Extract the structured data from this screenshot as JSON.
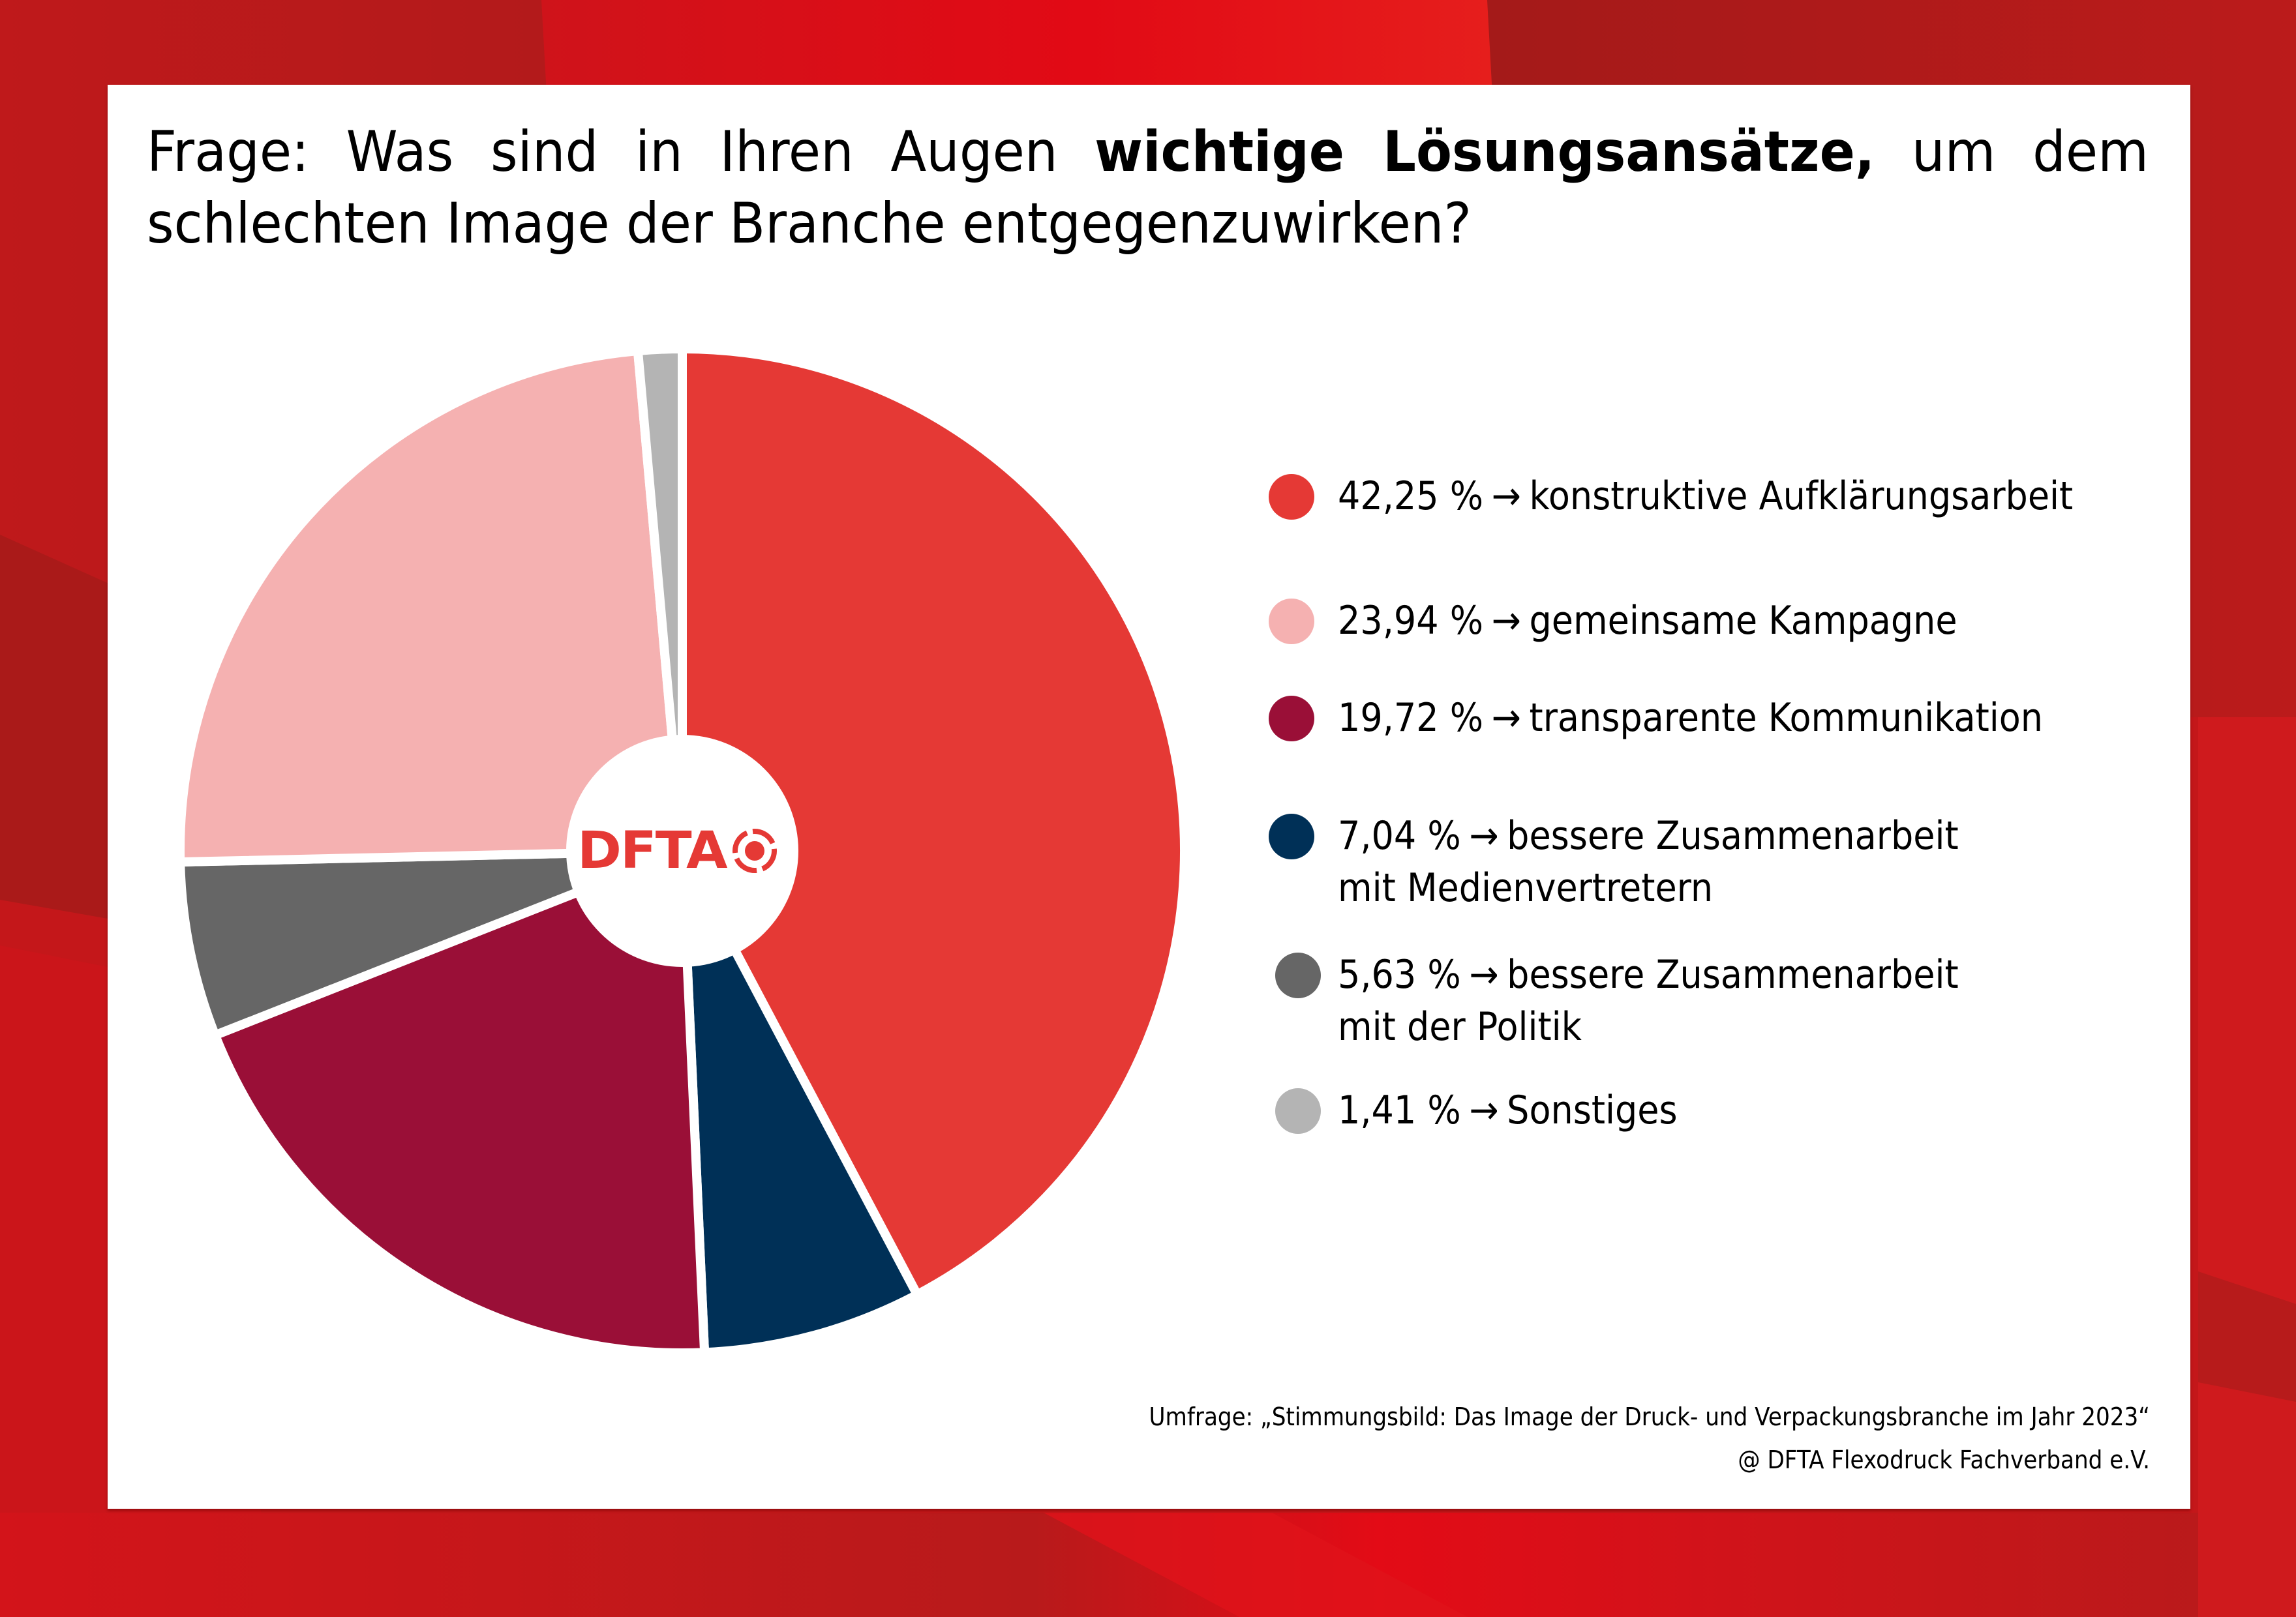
{
  "title": {
    "prefix": "Frage: Was sind in Ihren Augen ",
    "bold": "wichtige Lösungsansätze,",
    "suffix_line1": " um dem",
    "line2": "schlechten Image der Branche entgegenzuwirken?"
  },
  "logo": {
    "text": "DFTA",
    "icon": "target-icon",
    "color": "#e53935"
  },
  "legend": [
    {
      "percent": "42,25 %",
      "arrow": "→",
      "label": "konstruktive Aufklärungsarbeit",
      "label_line2": "",
      "color": "#e53935"
    },
    {
      "percent": "23,94 %",
      "arrow": "→",
      "label": "gemeinsame Kampagne",
      "label_line2": "",
      "color": "#f5b1b1"
    },
    {
      "percent": "19,72 %",
      "arrow": "→",
      "label": "transparente Kommunikation",
      "label_line2": "",
      "color": "#9a0f37"
    },
    {
      "percent": "7,04 %",
      "arrow": "→",
      "label": "bessere Zusammenarbeit",
      "label_line2": "mit Medienvertretern",
      "color": "#003057"
    },
    {
      "percent": "5,63 %",
      "arrow": "→",
      "label": "bessere Zusammenarbeit",
      "label_line2": "mit der Politik",
      "color": "#666666"
    },
    {
      "percent": "1,41 %",
      "arrow": "→",
      "label": "Sonstiges",
      "label_line2": "",
      "color": "#b4b4b4"
    }
  ],
  "footer": {
    "source": "Umfrage: „Stimmungsbild: Das Image der Druck- und  Verpackungsbranche im Jahr 2023“",
    "copyright": "@ DFTA Flexodruck Fachverband e.V."
  },
  "chart_data": {
    "type": "pie",
    "variant": "donut",
    "title": "Frage: Was sind in Ihren Augen wichtige Lösungsansätze, um dem schlechten Image der Branche entgegenzuwirken?",
    "unit": "%",
    "start": "12 o'clock",
    "direction": "clockwise",
    "legend_position": "right",
    "center_label": "DFTA",
    "categories": [
      "konstruktive Aufklärungsarbeit",
      "bessere Zusammenarbeit mit Medienvertretern",
      "transparente Kommunikation",
      "bessere Zusammenarbeit mit der Politik",
      "gemeinsame Kampagne",
      "Sonstiges"
    ],
    "values": [
      42.25,
      7.04,
      19.72,
      5.63,
      23.94,
      1.41
    ],
    "colors": [
      "#e53935",
      "#003057",
      "#9a0f37",
      "#666666",
      "#f5b1b1",
      "#b4b4b4"
    ]
  }
}
